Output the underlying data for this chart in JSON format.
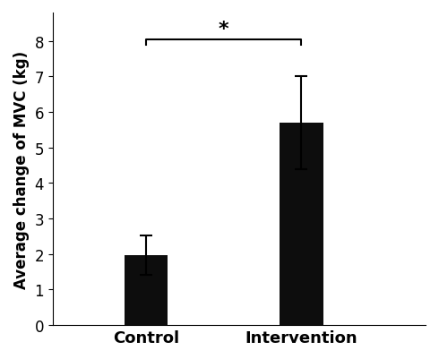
{
  "categories": [
    "Control",
    "Intervention"
  ],
  "values": [
    1.97,
    5.7
  ],
  "errors": [
    0.55,
    1.3
  ],
  "bar_color": "#0d0d0d",
  "ylabel": "Average change of MVC (kg)",
  "ylim": [
    0,
    8.8
  ],
  "yticks": [
    0,
    1,
    2,
    3,
    4,
    5,
    6,
    7,
    8
  ],
  "bar_width": 0.35,
  "significance_label": "*",
  "xlabel_fontsize": 13,
  "ylabel_fontsize": 12,
  "tick_fontsize": 12,
  "xlim": [
    0.0,
    3.0
  ]
}
